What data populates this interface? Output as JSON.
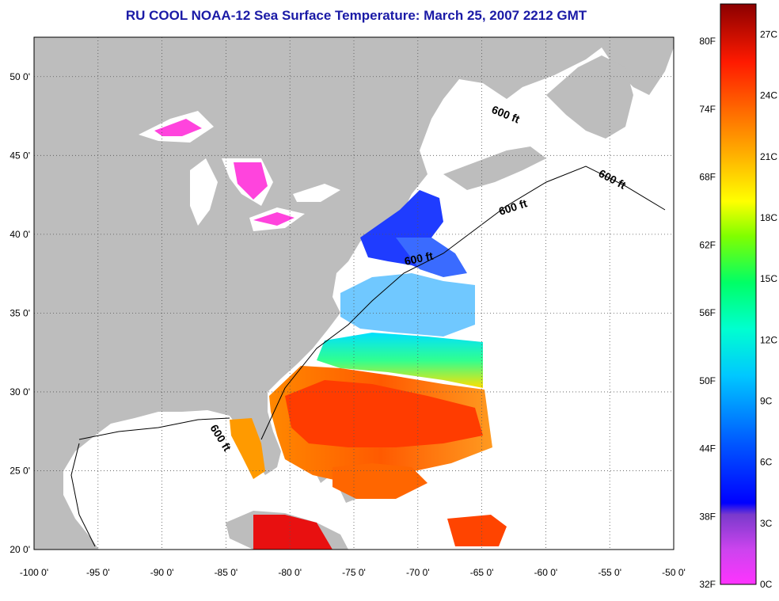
{
  "title": "RU COOL  NOAA-12  Sea Surface Temperature:  March 25, 2007 2212 GMT",
  "map": {
    "lon_ticks": [
      "-100 0'",
      "-95 0'",
      "-90 0'",
      "-85 0'",
      "-80 0'",
      "-75 0'",
      "-70 0'",
      "-65 0'",
      "-60 0'",
      "-55 0'",
      "-50 0'"
    ],
    "lat_ticks": [
      "50 0'",
      "45 0'",
      "40 0'",
      "35 0'",
      "30 0'",
      "25 0'",
      "20 0'"
    ],
    "lon_range": [
      -100,
      -50
    ],
    "lat_range": [
      20,
      52.5
    ],
    "isobath_label": "600 ft",
    "colors": {
      "land": "#bdbdbd",
      "ocean": "#ffffff",
      "frame": "#000000",
      "isobath": "#000000"
    }
  },
  "colorbar": {
    "fahrenheit_labels": [
      "80F",
      "74F",
      "68F",
      "62F",
      "56F",
      "50F",
      "44F",
      "38F",
      "32F"
    ],
    "celsius_labels": [
      "27C",
      "24C",
      "21C",
      "18C",
      "15C",
      "12C",
      "9C",
      "6C",
      "3C",
      "0C"
    ],
    "range_c": [
      0,
      28.5
    ]
  }
}
